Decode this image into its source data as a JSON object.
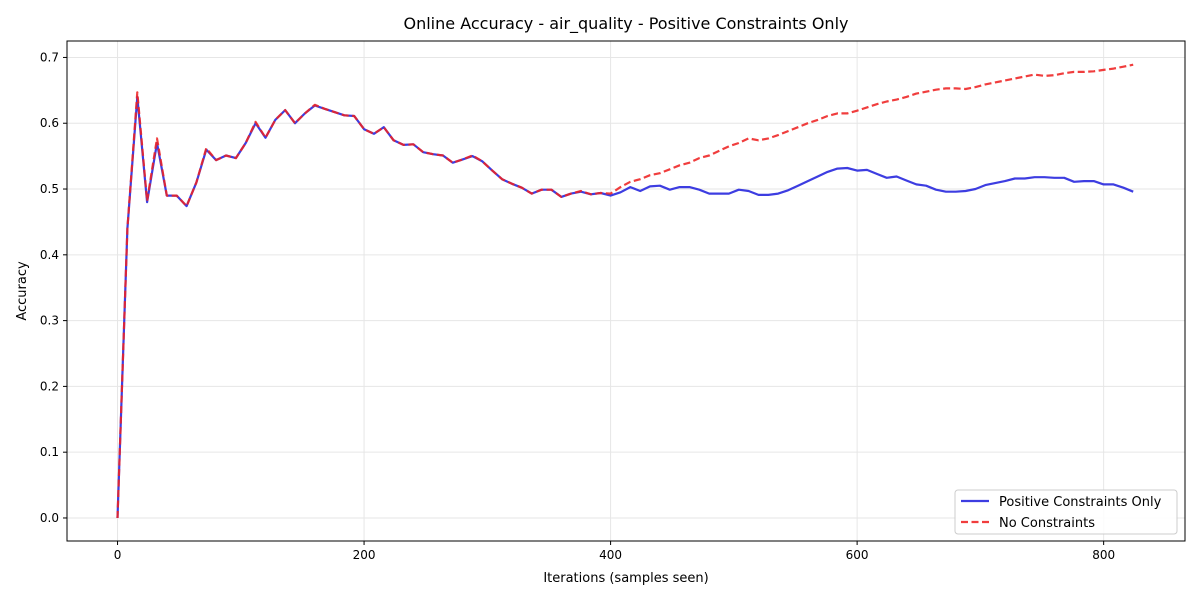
{
  "chart_data": {
    "type": "line",
    "title": "Online Accuracy - air_quality - Positive Constraints Only",
    "xlabel": "Iterations (samples seen)",
    "ylabel": "Accuracy",
    "xlim": [
      -41,
      866
    ],
    "ylim": [
      -0.035,
      0.725
    ],
    "xticks": [
      0,
      200,
      400,
      600,
      800
    ],
    "yticks": [
      0.0,
      0.1,
      0.2,
      0.3,
      0.4,
      0.5,
      0.6,
      0.7
    ],
    "grid": true,
    "legend_position": "bottom-right",
    "series": [
      {
        "name": "Positive Constraints Only",
        "color": "#2222dd",
        "style": "solid",
        "x": [
          0,
          8,
          16,
          24,
          32,
          40,
          48,
          56,
          64,
          72,
          80,
          88,
          96,
          104,
          112,
          120,
          128,
          136,
          144,
          152,
          160,
          168,
          176,
          184,
          192,
          200,
          208,
          216,
          224,
          232,
          240,
          248,
          256,
          264,
          272,
          280,
          288,
          296,
          304,
          312,
          320,
          328,
          336,
          344,
          352,
          360,
          368,
          376,
          384,
          392,
          400,
          408,
          416,
          424,
          432,
          440,
          448,
          456,
          464,
          472,
          480,
          488,
          496,
          504,
          512,
          520,
          528,
          536,
          544,
          552,
          560,
          568,
          576,
          584,
          592,
          600,
          608,
          616,
          624,
          632,
          640,
          648,
          656,
          664,
          672,
          680,
          688,
          696,
          704,
          712,
          720,
          728,
          736,
          744,
          752,
          760,
          768,
          776,
          784,
          792,
          800,
          808,
          816,
          824
        ],
        "y": [
          0.0,
          0.44,
          0.64,
          0.48,
          0.57,
          0.49,
          0.49,
          0.474,
          0.51,
          0.56,
          0.544,
          0.551,
          0.547,
          0.57,
          0.6,
          0.578,
          0.605,
          0.62,
          0.6,
          0.615,
          0.627,
          0.622,
          0.617,
          0.612,
          0.611,
          0.591,
          0.584,
          0.594,
          0.574,
          0.567,
          0.568,
          0.556,
          0.553,
          0.551,
          0.54,
          0.545,
          0.55,
          0.542,
          0.528,
          0.515,
          0.508,
          0.502,
          0.493,
          0.499,
          0.499,
          0.488,
          0.493,
          0.496,
          0.492,
          0.494,
          0.49,
          0.495,
          0.503,
          0.497,
          0.504,
          0.505,
          0.499,
          0.503,
          0.503,
          0.499,
          0.493,
          0.493,
          0.493,
          0.499,
          0.497,
          0.491,
          0.491,
          0.493,
          0.498,
          0.505,
          0.512,
          0.519,
          0.526,
          0.531,
          0.532,
          0.528,
          0.529,
          0.523,
          0.517,
          0.519,
          0.513,
          0.507,
          0.505,
          0.499,
          0.496,
          0.496,
          0.497,
          0.5,
          0.506,
          0.509,
          0.512,
          0.516,
          0.516,
          0.518,
          0.518,
          0.517,
          0.517,
          0.511,
          0.512,
          0.512,
          0.507,
          0.507,
          0.502,
          0.496
        ]
      },
      {
        "name": "No Constraints",
        "color": "#ee2222",
        "style": "dashed",
        "x": [
          0,
          8,
          16,
          24,
          32,
          40,
          48,
          56,
          64,
          72,
          80,
          88,
          96,
          104,
          112,
          120,
          128,
          136,
          144,
          152,
          160,
          168,
          176,
          184,
          192,
          200,
          208,
          216,
          224,
          232,
          240,
          248,
          256,
          264,
          272,
          280,
          288,
          296,
          304,
          312,
          320,
          328,
          336,
          344,
          352,
          360,
          368,
          376,
          384,
          392,
          400,
          408,
          416,
          424,
          432,
          440,
          448,
          456,
          464,
          472,
          480,
          488,
          496,
          504,
          512,
          520,
          528,
          536,
          544,
          552,
          560,
          568,
          576,
          584,
          592,
          600,
          608,
          616,
          624,
          632,
          640,
          648,
          656,
          664,
          672,
          680,
          688,
          696,
          704,
          712,
          720,
          728,
          736,
          744,
          752,
          760,
          768,
          776,
          784,
          792,
          800,
          808,
          816,
          824
        ],
        "y": [
          0.0,
          0.44,
          0.647,
          0.482,
          0.577,
          0.49,
          0.49,
          0.474,
          0.51,
          0.562,
          0.544,
          0.551,
          0.547,
          0.57,
          0.602,
          0.578,
          0.605,
          0.62,
          0.6,
          0.615,
          0.628,
          0.622,
          0.617,
          0.612,
          0.611,
          0.591,
          0.584,
          0.594,
          0.574,
          0.567,
          0.568,
          0.556,
          0.553,
          0.551,
          0.54,
          0.545,
          0.551,
          0.542,
          0.528,
          0.515,
          0.508,
          0.502,
          0.493,
          0.499,
          0.499,
          0.488,
          0.493,
          0.497,
          0.492,
          0.494,
          0.493,
          0.503,
          0.511,
          0.515,
          0.521,
          0.524,
          0.53,
          0.536,
          0.54,
          0.547,
          0.551,
          0.558,
          0.565,
          0.57,
          0.577,
          0.574,
          0.577,
          0.582,
          0.588,
          0.594,
          0.6,
          0.605,
          0.611,
          0.615,
          0.615,
          0.619,
          0.624,
          0.629,
          0.633,
          0.636,
          0.64,
          0.645,
          0.648,
          0.651,
          0.653,
          0.653,
          0.652,
          0.655,
          0.659,
          0.662,
          0.665,
          0.668,
          0.671,
          0.674,
          0.672,
          0.673,
          0.676,
          0.678,
          0.678,
          0.679,
          0.681,
          0.683,
          0.686,
          0.689
        ]
      }
    ]
  }
}
